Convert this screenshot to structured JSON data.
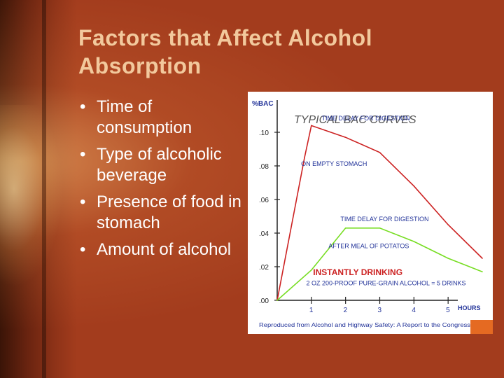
{
  "slide": {
    "title": "Factors that Affect Alcohol Absorption",
    "bullets": [
      "Time of consumption",
      "Type of alcoholic beverage",
      "Presence of food in stomach",
      "Amount of alcohol"
    ],
    "bullet_glyph": "•",
    "colors": {
      "background": "#9c3a1d",
      "title": "#f2c99d",
      "text": "#ffffff",
      "empty_stomach_curve": "#cc2222",
      "meal_curve": "#77dd22",
      "chart_title": "#555555",
      "annotation": "#223399"
    }
  },
  "chart_data": {
    "type": "line",
    "title": "TYPICAL BAC CURVES",
    "ylabel": "%BAC",
    "xlabel": "HOURS",
    "y_ticks": [
      ".10",
      ".08",
      ".06",
      ".04",
      ".02",
      ".00"
    ],
    "x_ticks": [
      "1",
      "2",
      "3",
      "4",
      "5"
    ],
    "xlim": [
      0,
      6
    ],
    "ylim": [
      0,
      0.12
    ],
    "series": [
      {
        "name": "ON EMPTY STOMACH",
        "color": "#cc2222",
        "x": [
          0,
          0.8,
          1.0,
          2.0,
          3.0,
          4.0,
          5.0,
          6.0
        ],
        "y": [
          0.0,
          0.085,
          0.104,
          0.097,
          0.088,
          0.068,
          0.045,
          0.025
        ]
      },
      {
        "name": "AFTER MEAL OF POTATOS",
        "color": "#77dd22",
        "x": [
          0,
          1.0,
          2.0,
          3.0,
          4.0,
          5.0,
          6.0
        ],
        "y": [
          0.0,
          0.018,
          0.043,
          0.043,
          0.035,
          0.025,
          0.017
        ]
      }
    ],
    "annotations": [
      {
        "text": "TIME DELAY FOR DIGESTION",
        "x": 1.3,
        "y": 0.107,
        "color": "#223399"
      },
      {
        "text": "ON EMPTY STOMACH",
        "x": 0.7,
        "y": 0.08,
        "color": "#223399"
      },
      {
        "text": "TIME DELAY FOR DIGESTION",
        "x": 1.85,
        "y": 0.047,
        "color": "#223399"
      },
      {
        "text": "AFTER MEAL OF POTATOS",
        "x": 1.5,
        "y": 0.031,
        "color": "#223399"
      },
      {
        "text": "INSTANTLY DRINKING",
        "x": 1.05,
        "y": 0.015,
        "color": "#cc2222"
      },
      {
        "text": "2 OZ 200-PROOF PURE-GRAIN ALCOHOL = 5 DRINKS",
        "x": 0.85,
        "y": 0.009,
        "color": "#223399"
      }
    ],
    "footnote": "Reproduced from Alcohol and Highway Safety: A Report to the Congress",
    "grid": false,
    "legend": "none"
  }
}
